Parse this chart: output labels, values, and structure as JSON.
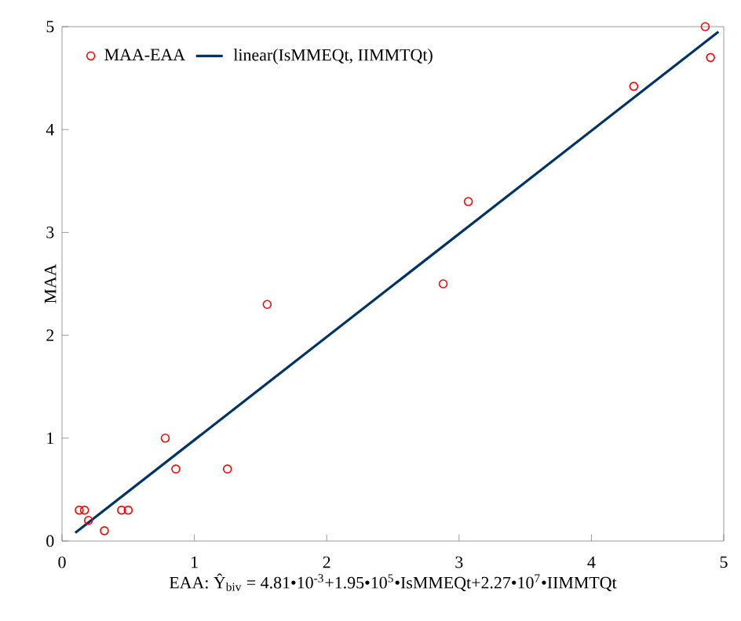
{
  "chart_data": {
    "type": "scatter",
    "ylabel": "MAA",
    "xlabel": "EAA: Ŷ$_{biv}$ = 4.81•10$^{-3}$+1.95•10$^{5}$•IsMMEQt+2.27•10$^{7}$•IIMMTQt",
    "xlim": [
      0,
      5
    ],
    "ylim": [
      0,
      5
    ],
    "xticks": [
      0,
      1,
      2,
      3,
      4,
      5
    ],
    "yticks": [
      0,
      1,
      2,
      3,
      4,
      5
    ],
    "grid": false,
    "legend": "top left",
    "series": [
      {
        "name": "MAA-EAA",
        "marker": "circle",
        "color": "#ff0000",
        "x": [
          0.13,
          0.17,
          0.2,
          0.32,
          0.45,
          0.5,
          0.78,
          0.86,
          1.25,
          1.55,
          2.88,
          3.07,
          4.32,
          4.86,
          4.9
        ],
        "values": [
          0.3,
          0.3,
          0.2,
          0.1,
          0.3,
          0.3,
          1.0,
          0.7,
          0.7,
          2.3,
          2.5,
          3.3,
          4.42,
          5.0,
          4.7
        ]
      },
      {
        "name": "linear(IsMMEQt, IIMMTQt)",
        "type": "line",
        "marker": "none",
        "color": "#003366",
        "x": [
          0.1,
          4.96
        ],
        "values": [
          0.08,
          4.95
        ]
      }
    ]
  }
}
